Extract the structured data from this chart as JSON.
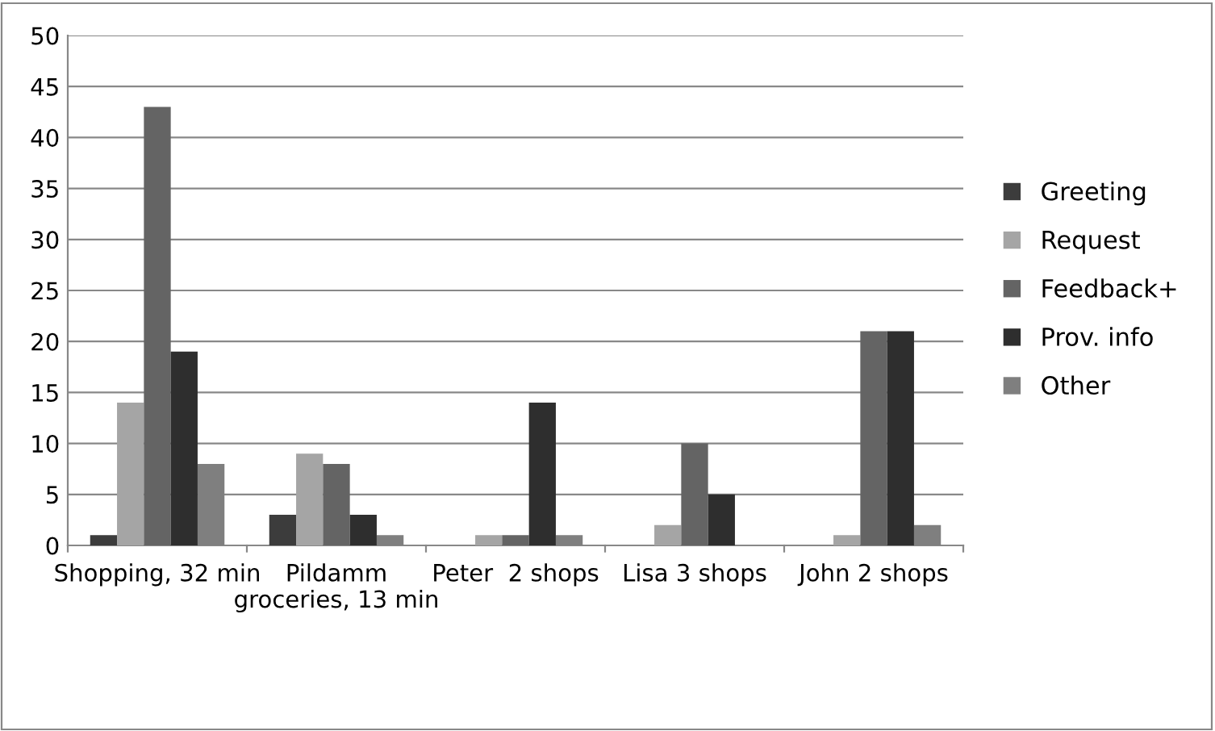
{
  "chart_data": {
    "type": "bar",
    "categories": [
      "Shopping, 32 min",
      "Pildamm groceries, 13 min",
      "Peter  2 shops",
      "Lisa 3 shops",
      "John 2 shops"
    ],
    "series": [
      {
        "name": "Greeting",
        "color": "#3c3c3c",
        "values": [
          1,
          3,
          0,
          0,
          0
        ]
      },
      {
        "name": "Request",
        "color": "#a5a5a5",
        "values": [
          14,
          9,
          1,
          2,
          1
        ]
      },
      {
        "name": "Feedback+",
        "color": "#646464",
        "values": [
          43,
          8,
          1,
          10,
          21
        ]
      },
      {
        "name": "Prov. info",
        "color": "#2e2e2e",
        "values": [
          19,
          3,
          14,
          5,
          21
        ]
      },
      {
        "name": "Other",
        "color": "#7f7f7f",
        "values": [
          8,
          1,
          1,
          0,
          2
        ]
      }
    ],
    "ylim": [
      0,
      50
    ],
    "yticks": [
      0,
      5,
      10,
      15,
      20,
      25,
      30,
      35,
      40,
      45,
      50
    ],
    "grid": "y",
    "legend": "right"
  }
}
